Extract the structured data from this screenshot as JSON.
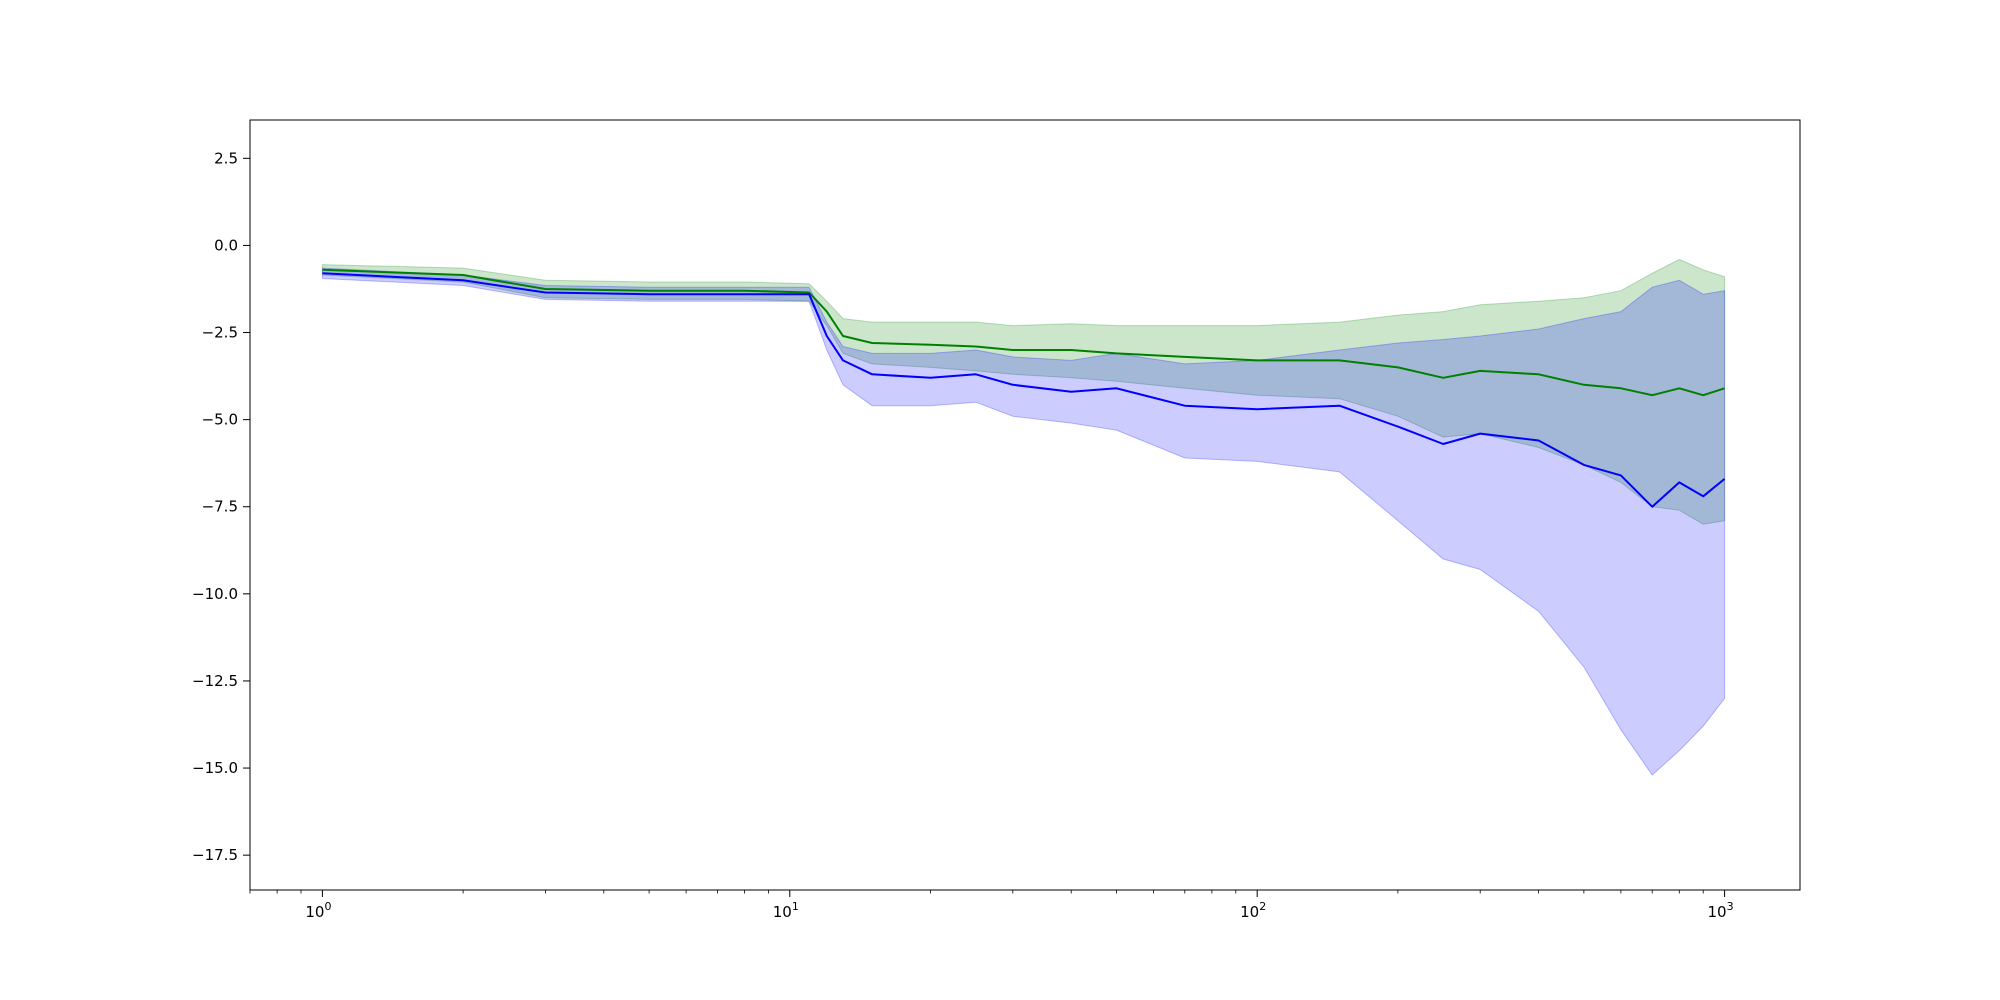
{
  "chart_data": {
    "type": "line",
    "title": "",
    "xlabel": "",
    "ylabel": "",
    "x_scale": "log",
    "xlim": [
      0.7,
      1450
    ],
    "ylim": [
      -18.5,
      3.6
    ],
    "grid": false,
    "x_ticks": [
      {
        "base": "10",
        "exp": "0",
        "value": 1
      },
      {
        "base": "10",
        "exp": "1",
        "value": 10
      },
      {
        "base": "10",
        "exp": "2",
        "value": 100
      },
      {
        "base": "10",
        "exp": "3",
        "value": 1000
      }
    ],
    "y_ticks": [
      {
        "label": "2.5",
        "value": 2.5
      },
      {
        "label": "0.0",
        "value": 0
      },
      {
        "label": "−2.5",
        "value": -2.5
      },
      {
        "label": "−5.0",
        "value": -5
      },
      {
        "label": "−7.5",
        "value": -7.5
      },
      {
        "label": "−10.0",
        "value": -10
      },
      {
        "label": "−12.5",
        "value": -12.5
      },
      {
        "label": "−15.0",
        "value": -15
      },
      {
        "label": "−17.5",
        "value": -17.5
      }
    ],
    "series": [
      {
        "color": "#008000",
        "band_color": "#008000",
        "x": [
          1,
          2,
          3,
          5,
          8,
          11,
          12,
          13,
          15,
          20,
          25,
          30,
          40,
          50,
          70,
          100,
          150,
          200,
          250,
          300,
          400,
          500,
          600,
          700,
          800,
          900,
          1000
        ],
        "y": [
          -0.7,
          -0.85,
          -1.25,
          -1.3,
          -1.3,
          -1.35,
          -1.9,
          -2.6,
          -2.8,
          -2.85,
          -2.9,
          -3.0,
          -3.0,
          -3.1,
          -3.2,
          -3.3,
          -3.3,
          -3.5,
          -3.8,
          -3.6,
          -3.7,
          -4.0,
          -4.1,
          -4.3,
          -4.1,
          -4.3,
          -4.1
        ],
        "upper": [
          -0.55,
          -0.65,
          -1.0,
          -1.05,
          -1.05,
          -1.1,
          -1.6,
          -2.1,
          -2.2,
          -2.2,
          -2.2,
          -2.3,
          -2.25,
          -2.3,
          -2.3,
          -2.3,
          -2.2,
          -2.0,
          -1.9,
          -1.7,
          -1.6,
          -1.5,
          -1.3,
          -0.8,
          -0.4,
          -0.7,
          -0.9
        ],
        "lower": [
          -0.85,
          -1.05,
          -1.5,
          -1.55,
          -1.55,
          -1.6,
          -2.3,
          -3.1,
          -3.4,
          -3.5,
          -3.6,
          -3.7,
          -3.8,
          -3.9,
          -4.1,
          -4.3,
          -4.4,
          -4.9,
          -5.5,
          -5.4,
          -5.8,
          -6.3,
          -6.8,
          -7.5,
          -7.6,
          -8.0,
          -7.9
        ]
      },
      {
        "color": "#0000ff",
        "band_color": "#0000ff",
        "x": [
          1,
          2,
          3,
          5,
          8,
          11,
          12,
          13,
          15,
          20,
          25,
          30,
          40,
          50,
          70,
          100,
          150,
          200,
          250,
          300,
          400,
          500,
          600,
          700,
          800,
          900,
          1000
        ],
        "y": [
          -0.8,
          -1.0,
          -1.35,
          -1.4,
          -1.4,
          -1.4,
          -2.6,
          -3.3,
          -3.7,
          -3.8,
          -3.7,
          -4.0,
          -4.2,
          -4.1,
          -4.6,
          -4.7,
          -4.6,
          -5.2,
          -5.7,
          -5.4,
          -5.6,
          -6.3,
          -6.6,
          -7.5,
          -6.8,
          -7.2,
          -6.7
        ],
        "upper": [
          -0.65,
          -0.85,
          -1.15,
          -1.2,
          -1.2,
          -1.2,
          -2.2,
          -2.9,
          -3.1,
          -3.1,
          -3.0,
          -3.2,
          -3.3,
          -3.1,
          -3.4,
          -3.3,
          -3.0,
          -2.8,
          -2.7,
          -2.6,
          -2.4,
          -2.1,
          -1.9,
          -1.2,
          -1.0,
          -1.4,
          -1.3
        ],
        "lower": [
          -0.95,
          -1.15,
          -1.55,
          -1.6,
          -1.6,
          -1.6,
          -3.0,
          -4.0,
          -4.6,
          -4.6,
          -4.5,
          -4.9,
          -5.1,
          -5.3,
          -6.1,
          -6.2,
          -6.5,
          -7.9,
          -9.0,
          -9.3,
          -10.5,
          -12.1,
          -13.9,
          -15.2,
          -14.5,
          -13.8,
          -13.0
        ]
      }
    ]
  }
}
